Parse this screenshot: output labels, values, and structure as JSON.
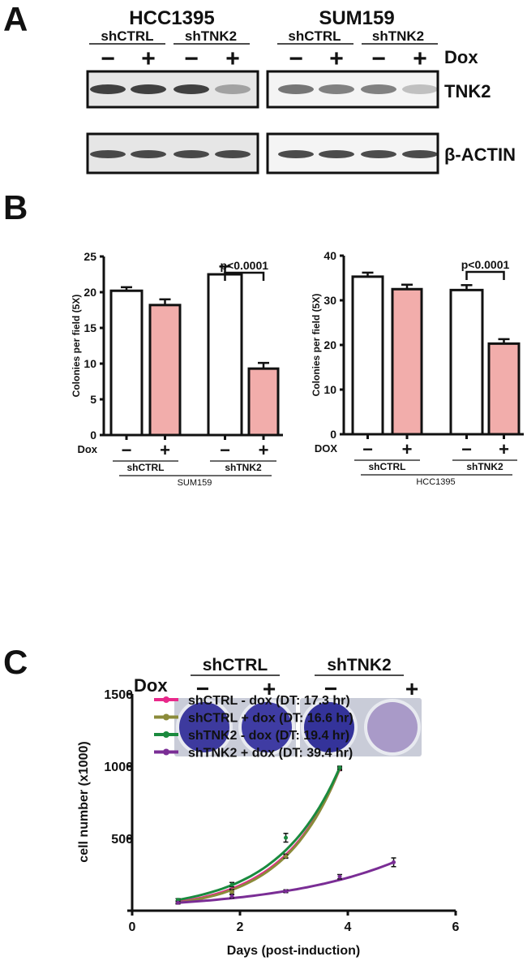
{
  "panel_labels": {
    "a": "A",
    "b": "B",
    "c": "C"
  },
  "panel_a": {
    "cell_lines": [
      "HCC1395",
      "SUM159"
    ],
    "groups": [
      "shCTRL",
      "shTNK2",
      "shCTRL",
      "shTNK2"
    ],
    "dox_signs": [
      "−",
      "+",
      "−",
      "+",
      "−",
      "+",
      "−",
      "+"
    ],
    "dox_label": "Dox",
    "rows": [
      "TNK2",
      "β-ACTIN"
    ],
    "tnk2_band_intensity": [
      0.85,
      0.85,
      0.85,
      0.35,
      0.6,
      0.55,
      0.55,
      0.25
    ],
    "actin_band_intensity": [
      0.8,
      0.8,
      0.8,
      0.8,
      0.8,
      0.8,
      0.8,
      0.8
    ]
  },
  "chart_data": [
    {
      "type": "bar",
      "panel": "B-left",
      "ylabel": "Colonies per field (5X)",
      "ylim": [
        0,
        25
      ],
      "yticks": [
        "0",
        "5",
        "10",
        "15",
        "20",
        "25"
      ],
      "categories": [
        "shCTRL −",
        "shCTRL +",
        "shTNK2 −",
        "shTNK2 +"
      ],
      "values": [
        20.2,
        18.2,
        22.5,
        9.3
      ],
      "errors": [
        0.5,
        0.8,
        1.1,
        0.8
      ],
      "dox_label": "Dox",
      "dox_signs": [
        "−",
        "+",
        "−",
        "+"
      ],
      "groups": [
        "shCTRL",
        "shTNK2"
      ],
      "cell_line": "SUM159",
      "annotation": "p<0.0001",
      "colors": [
        "#ffffff",
        "#f2adab",
        "#ffffff",
        "#f2adab"
      ]
    },
    {
      "type": "bar",
      "panel": "B-right",
      "ylabel": "Colonies per field (5X)",
      "ylim": [
        0,
        40
      ],
      "yticks": [
        "0",
        "10",
        "20",
        "30",
        "40"
      ],
      "categories": [
        "shCTRL −",
        "shCTRL +",
        "shTNK2 −",
        "shTNK2 +"
      ],
      "values": [
        35.3,
        32.5,
        32.3,
        20.3
      ],
      "errors": [
        0.9,
        1.0,
        1.1,
        1.0
      ],
      "dox_label": "DOX",
      "dox_signs": [
        "−",
        "+",
        "−",
        "+"
      ],
      "groups": [
        "shCTRL",
        "shTNK2"
      ],
      "cell_line": "HCC1395",
      "annotation": "p<0.0001",
      "colors": [
        "#ffffff",
        "#f2adab",
        "#ffffff",
        "#f2adab"
      ]
    },
    {
      "type": "line",
      "panel": "C-growth",
      "xlabel": "Days (post-induction)",
      "ylabel": "cell number (x1000)",
      "xlim": [
        0,
        6
      ],
      "ylim": [
        0,
        1500
      ],
      "xticks": [
        "0",
        "2",
        "4",
        "6"
      ],
      "yticks": [
        "500",
        "1000",
        "1500"
      ],
      "legend_position": "top-left",
      "series": [
        {
          "name": "shCTRL - dox (DT: 17.3 hr)",
          "color": "#e8288a",
          "x": [
            0.85,
            1.85,
            2.85,
            3.85
          ],
          "y": [
            60,
            140,
            380,
            980
          ],
          "err": [
            8,
            10,
            12,
            10
          ]
        },
        {
          "name": "shCTRL + dox (DT: 16.6 hr)",
          "color": "#8b8b3a",
          "x": [
            0.85,
            1.85,
            2.85,
            3.85
          ],
          "y": [
            55,
            130,
            375,
            985
          ],
          "err": [
            8,
            15,
            12,
            10
          ]
        },
        {
          "name": "shTNK2 - dox (DT: 19.4 hr)",
          "color": "#1a8a3e",
          "x": [
            0.85,
            1.85,
            2.85,
            3.85
          ],
          "y": [
            75,
            180,
            505,
            990
          ],
          "err": [
            8,
            15,
            30,
            10
          ]
        },
        {
          "name": "shTNK2 + dox (DT: 39.4 hr)",
          "color": "#7a2d95",
          "x": [
            0.85,
            1.85,
            2.85,
            3.85,
            4.85
          ],
          "y": [
            55,
            100,
            135,
            235,
            335
          ],
          "err": [
            8,
            12,
            10,
            15,
            30
          ]
        }
      ]
    }
  ],
  "panel_c": {
    "groups": [
      "shCTRL",
      "shTNK2"
    ],
    "dox_label": "Dox",
    "dox_signs": [
      "−",
      "+",
      "−",
      "+"
    ],
    "well_stain": [
      "#3d3a9e",
      "#3f3ca3",
      "#34339a",
      "#a99ac8"
    ]
  }
}
